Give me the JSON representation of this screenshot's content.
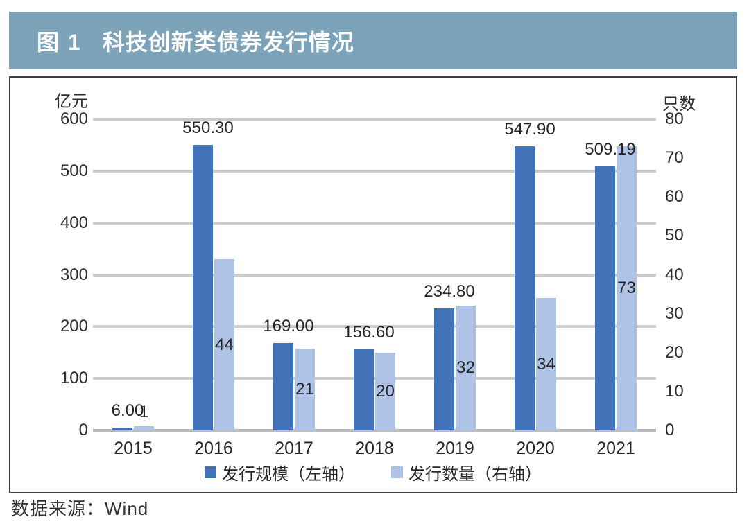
{
  "header": {
    "figure_label": "图 1",
    "title": "科技创新类债券发行情况",
    "bg_color": "#7DA3BB",
    "text_color": "#FFFFFF"
  },
  "chart_data": {
    "type": "bar",
    "title": "科技创新类债券发行情况",
    "categories": [
      "2015",
      "2016",
      "2017",
      "2018",
      "2019",
      "2020",
      "2021"
    ],
    "series": [
      {
        "name": "发行规模（左轴）",
        "axis": "left",
        "color": "#4273B8",
        "values": [
          6.0,
          550.3,
          169.0,
          156.6,
          234.8,
          547.9,
          509.19
        ],
        "labels": [
          "6.00",
          "550.30",
          "169.00",
          "156.60",
          "234.80",
          "547.90",
          "509.19"
        ]
      },
      {
        "name": "发行数量（右轴）",
        "axis": "right",
        "color": "#AFC3E6",
        "values": [
          1,
          44,
          21,
          20,
          32,
          34,
          73
        ],
        "labels": [
          "1",
          "44",
          "21",
          "20",
          "32",
          "34",
          "73"
        ]
      }
    ],
    "left_axis": {
      "title": "亿元",
      "min": 0,
      "max": 600,
      "step": 100,
      "ticks": [
        "600",
        "500",
        "400",
        "300",
        "200",
        "100",
        "0"
      ]
    },
    "right_axis": {
      "title": "只数",
      "min": 0,
      "max": 80,
      "step": 10,
      "ticks": [
        "80",
        "70",
        "60",
        "50",
        "40",
        "30",
        "20",
        "10",
        "0"
      ]
    },
    "grid": true,
    "legend_position": "bottom",
    "gridline_color": "#CBCBCB"
  },
  "source": {
    "text": "数据来源：Wind"
  }
}
